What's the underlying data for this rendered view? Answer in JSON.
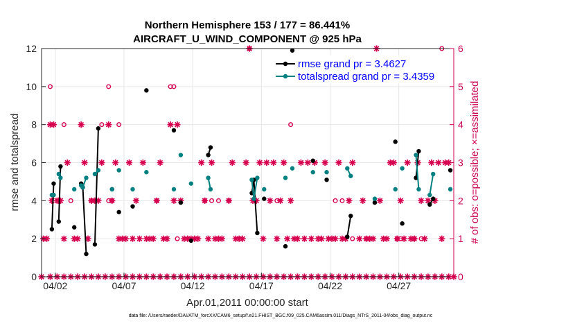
{
  "chart_data": {
    "type": "line",
    "title_line1": "Northern Hemisphere 153 / 177 = 86.441%",
    "title_line2": "AIRCRAFT_U_WIND_COMPONENT @ 925 hPa",
    "xlabel": "Apr.01,2011 00:00:00 start",
    "ylabel_left": "rmse and totalspread",
    "ylabel_right": "# of obs: o=possible; ×=assimilated",
    "xlim": [
      1.0,
      31.0
    ],
    "ylim_left": [
      0,
      12
    ],
    "ylim_right": [
      0,
      6
    ],
    "x_ticks": [
      {
        "x": 2.0,
        "label": "04/02"
      },
      {
        "x": 7.0,
        "label": "04/07"
      },
      {
        "x": 12.0,
        "label": "04/12"
      },
      {
        "x": 17.0,
        "label": "04/17"
      },
      {
        "x": 22.0,
        "label": "04/22"
      },
      {
        "x": 27.0,
        "label": "04/27"
      }
    ],
    "y_ticks_left": [
      "0",
      "2",
      "4",
      "6",
      "8",
      "10",
      "12"
    ],
    "y_ticks_right": [
      "0",
      "1",
      "2",
      "3",
      "4",
      "5",
      "6"
    ],
    "grid": true,
    "legend_position": "top-right",
    "colors": {
      "rmse": "#000000",
      "totalspread": "#008080",
      "obs": "#d6004f",
      "right_axis": "#cc0052",
      "legend_text": "#0000ff",
      "grid": "#e6e6e6"
    },
    "series": [
      {
        "name": "rmse grand pr = 3.4627",
        "segments": [
          [
            [
              1.75,
              2.5
            ],
            [
              1.88,
              4.9
            ]
          ],
          [
            [
              2.25,
              2.9
            ],
            [
              2.38,
              5.8
            ]
          ],
          [
            [
              3.38,
              2.6
            ]
          ],
          [
            [
              3.88,
              4.9
            ],
            [
              4.0,
              4.7
            ],
            [
              4.25,
              1.2
            ]
          ],
          [
            [
              4.88,
              1.7
            ],
            [
              5.13,
              7.8
            ]
          ],
          [
            [
              6.13,
              4.6
            ]
          ],
          [
            [
              6.63,
              3.4
            ]
          ],
          [
            [
              7.63,
              3.7
            ]
          ],
          [
            [
              8.63,
              9.8
            ]
          ],
          [
            [
              10.63,
              7.7
            ]
          ],
          [
            [
              11.13,
              3.9
            ]
          ],
          [
            [
              11.88,
              1.9
            ]
          ],
          [
            [
              13.13,
              6.4
            ],
            [
              13.3,
              6.8
            ]
          ],
          [
            [
              16.3,
              4.4
            ],
            [
              16.45,
              5.1
            ],
            [
              16.7,
              2.3
            ]
          ],
          [
            [
              17.2,
              4.1
            ]
          ],
          [
            [
              18.75,
              1.6
            ]
          ],
          [
            [
              19.25,
              11.9
            ]
          ],
          [
            [
              20.75,
              6.1
            ]
          ],
          [
            [
              21.75,
              5.1
            ]
          ],
          [
            [
              23.25,
              2.1
            ],
            [
              23.5,
              3.2
            ]
          ],
          [
            [
              25.25,
              3.9
            ]
          ],
          [
            [
              26.75,
              7.1
            ]
          ],
          [
            [
              27.25,
              2.8
            ]
          ],
          [
            [
              28.25,
              5.2
            ],
            [
              28.45,
              6.6
            ]
          ],
          [
            [
              29.25,
              3.8
            ],
            [
              29.5,
              4.1
            ]
          ],
          [
            [
              30.75,
              5.6
            ]
          ]
        ]
      },
      {
        "name": "totalspread grand pr = 3.4359",
        "segments": [
          [
            [
              1.75,
              4.3
            ],
            [
              1.88,
              4.3
            ]
          ],
          [
            [
              2.25,
              5.4
            ],
            [
              2.38,
              5.2
            ]
          ],
          [
            [
              3.38,
              4.6
            ]
          ],
          [
            [
              3.88,
              4.8
            ],
            [
              4.0,
              4.7
            ],
            [
              4.25,
              5.2
            ]
          ],
          [
            [
              4.88,
              5.4
            ],
            [
              5.13,
              5.6
            ]
          ],
          [
            [
              6.13,
              4.6
            ]
          ],
          [
            [
              6.63,
              5.6
            ]
          ],
          [
            [
              7.63,
              4.6
            ]
          ],
          [
            [
              8.63,
              5.5
            ]
          ],
          [
            [
              10.63,
              4.6
            ]
          ],
          [
            [
              11.13,
              6.4
            ]
          ],
          [
            [
              11.88,
              4.9
            ]
          ],
          [
            [
              13.13,
              5.2
            ],
            [
              13.3,
              4.6
            ]
          ],
          [
            [
              16.3,
              5.1
            ],
            [
              16.45,
              4.1
            ],
            [
              16.7,
              5.2
            ]
          ],
          [
            [
              17.2,
              4.6
            ]
          ],
          [
            [
              18.75,
              5.2
            ]
          ],
          [
            [
              19.25,
              5.7
            ]
          ],
          [
            [
              20.75,
              5.5
            ]
          ],
          [
            [
              21.75,
              5.5
            ]
          ],
          [
            [
              23.25,
              5.7
            ],
            [
              23.5,
              5.3
            ]
          ],
          [
            [
              25.25,
              4.1
            ]
          ],
          [
            [
              26.75,
              4.6
            ]
          ],
          [
            [
              27.25,
              5.7
            ]
          ],
          [
            [
              28.25,
              6.4
            ],
            [
              28.45,
              4.6
            ]
          ],
          [
            [
              29.25,
              4.3
            ],
            [
              29.5,
              5.4
            ]
          ],
          [
            [
              30.75,
              4.6
            ]
          ]
        ]
      }
    ],
    "obs_assimilated": [
      [
        1.13,
        1
      ],
      [
        1.38,
        1
      ],
      [
        1.63,
        4
      ],
      [
        1.75,
        2
      ],
      [
        1.88,
        4
      ],
      [
        2.13,
        2
      ],
      [
        2.25,
        2
      ],
      [
        2.38,
        2
      ],
      [
        2.63,
        1
      ],
      [
        2.88,
        3
      ],
      [
        3.38,
        1
      ],
      [
        3.63,
        1
      ],
      [
        3.88,
        4
      ],
      [
        4.13,
        3
      ],
      [
        4.38,
        1
      ],
      [
        4.63,
        2
      ],
      [
        4.88,
        2
      ],
      [
        5.13,
        2
      ],
      [
        5.38,
        3
      ],
      [
        5.88,
        4
      ],
      [
        6.13,
        2
      ],
      [
        6.38,
        3
      ],
      [
        6.63,
        1
      ],
      [
        6.88,
        1
      ],
      [
        7.13,
        1
      ],
      [
        7.38,
        3
      ],
      [
        7.63,
        1
      ],
      [
        7.88,
        2
      ],
      [
        8.13,
        1
      ],
      [
        8.38,
        3
      ],
      [
        8.63,
        1
      ],
      [
        8.88,
        1
      ],
      [
        9.13,
        1
      ],
      [
        9.38,
        2
      ],
      [
        9.63,
        3
      ],
      [
        9.88,
        1
      ],
      [
        10.13,
        1
      ],
      [
        10.38,
        4
      ],
      [
        10.63,
        2
      ],
      [
        10.88,
        4
      ],
      [
        11.13,
        2
      ],
      [
        11.38,
        1
      ],
      [
        11.63,
        1
      ],
      [
        11.88,
        1
      ],
      [
        12.13,
        1
      ],
      [
        12.38,
        1
      ],
      [
        12.63,
        3
      ],
      [
        12.88,
        2
      ],
      [
        13.13,
        1
      ],
      [
        13.38,
        3
      ],
      [
        13.63,
        1
      ],
      [
        13.88,
        1
      ],
      [
        14.13,
        1
      ],
      [
        14.63,
        2
      ],
      [
        14.88,
        3
      ],
      [
        15.13,
        1
      ],
      [
        15.38,
        1
      ],
      [
        15.63,
        1
      ],
      [
        15.88,
        3
      ],
      [
        16.13,
        6
      ],
      [
        16.38,
        2
      ],
      [
        16.63,
        2
      ],
      [
        16.88,
        3
      ],
      [
        17.13,
        1
      ],
      [
        17.38,
        3
      ],
      [
        17.63,
        2
      ],
      [
        17.88,
        3
      ],
      [
        18.13,
        1
      ],
      [
        18.38,
        2
      ],
      [
        18.63,
        3
      ],
      [
        18.88,
        1
      ],
      [
        19.13,
        2
      ],
      [
        19.38,
        1
      ],
      [
        19.63,
        1
      ],
      [
        19.88,
        3
      ],
      [
        20.13,
        1
      ],
      [
        20.38,
        3
      ],
      [
        20.63,
        1
      ],
      [
        20.88,
        3
      ],
      [
        21.13,
        1
      ],
      [
        21.38,
        1
      ],
      [
        21.63,
        3
      ],
      [
        21.88,
        1
      ],
      [
        22.13,
        1
      ],
      [
        22.38,
        1
      ],
      [
        22.63,
        3
      ],
      [
        22.88,
        1
      ],
      [
        23.13,
        1
      ],
      [
        23.38,
        2
      ],
      [
        23.63,
        3
      ],
      [
        24.13,
        1
      ],
      [
        24.38,
        2
      ],
      [
        24.63,
        1
      ],
      [
        24.88,
        1
      ],
      [
        25.13,
        1
      ],
      [
        25.38,
        6
      ],
      [
        25.63,
        2
      ],
      [
        25.88,
        1
      ],
      [
        26.13,
        1
      ],
      [
        26.38,
        3
      ],
      [
        26.63,
        3
      ],
      [
        26.88,
        1
      ],
      [
        27.13,
        2
      ],
      [
        27.38,
        1
      ],
      [
        27.63,
        3
      ],
      [
        27.88,
        1
      ],
      [
        28.13,
        1
      ],
      [
        28.38,
        3
      ],
      [
        28.63,
        2
      ],
      [
        28.88,
        1
      ],
      [
        29.13,
        2
      ],
      [
        29.38,
        3
      ],
      [
        29.63,
        2
      ],
      [
        29.88,
        3
      ],
      [
        30.13,
        1
      ],
      [
        30.38,
        3
      ],
      [
        30.63,
        3
      ]
    ],
    "obs_possible": [
      [
        1.63,
        5
      ],
      [
        2.63,
        4
      ],
      [
        3.13,
        2
      ],
      [
        4.63,
        2
      ],
      [
        5.38,
        4
      ],
      [
        5.88,
        5
      ],
      [
        5.88,
        2
      ],
      [
        6.13,
        2
      ],
      [
        6.63,
        4
      ],
      [
        9.38,
        2
      ],
      [
        10.38,
        5
      ],
      [
        10.63,
        5
      ],
      [
        10.88,
        1
      ],
      [
        12.88,
        2
      ],
      [
        13.38,
        2
      ],
      [
        13.88,
        2
      ],
      [
        14.63,
        2
      ],
      [
        16.13,
        6
      ],
      [
        18.13,
        2
      ],
      [
        19.13,
        4
      ],
      [
        22.38,
        2
      ],
      [
        22.88,
        2
      ],
      [
        23.63,
        1
      ],
      [
        24.63,
        1
      ],
      [
        26.88,
        1
      ],
      [
        27.13,
        1
      ],
      [
        28.13,
        1
      ],
      [
        28.63,
        1
      ],
      [
        30.13,
        6
      ]
    ],
    "obs_zero_x": [
      1.0,
      1.63,
      2.13,
      2.63,
      3.13,
      3.63,
      4.13,
      4.63,
      5.13,
      5.63,
      6.13,
      6.63,
      7.13,
      7.63,
      8.13,
      8.63,
      9.13,
      9.63,
      10.13,
      10.63,
      11.13,
      11.63,
      12.13,
      12.63,
      13.13,
      13.63,
      14.13,
      14.63,
      15.13,
      15.63,
      16.13,
      16.63,
      17.13,
      17.63,
      18.13,
      18.63,
      19.13,
      19.63,
      20.13,
      20.63,
      21.13,
      21.63,
      22.13,
      22.63,
      23.13,
      23.63,
      24.13,
      24.63,
      25.13,
      25.63,
      26.13,
      26.63,
      27.13,
      27.63,
      28.13,
      28.63,
      29.13,
      29.63,
      30.13,
      30.63,
      31.0
    ],
    "footnote": "data file: /Users/raeder/DAI/ATM_forcXX/CAM6_setup/f.e21.FHIST_BGC.f09_025.CAM6assim.011/Diags_NTrS_2011-04/obs_diag_output.nc"
  }
}
